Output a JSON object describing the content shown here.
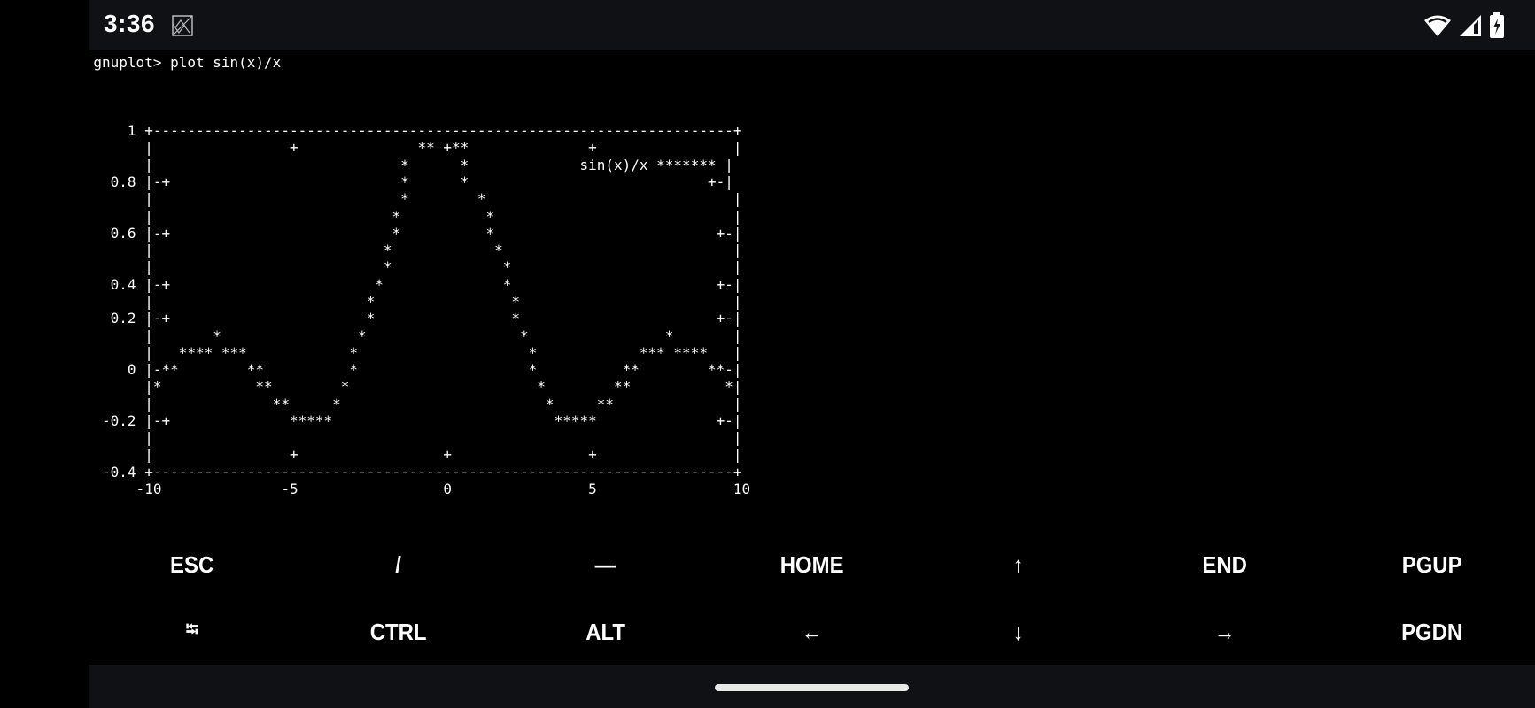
{
  "status_bar": {
    "time": "3:36",
    "notification_icon": "gallery-icon",
    "icons": [
      "wifi-icon",
      "cellular-signal-icon",
      "battery-charging-icon"
    ]
  },
  "terminal": {
    "lines": [
      "gnuplot> plot sin(x)/x",
      "",
      "",
      "",
      "    1 +--------------------------------------------------------------------+",
      "      |                +              ** +**              +                |",
      "      |                             *      *             sin(x)/x ******* |",
      "  0.8 |-+                           *      *                            +-|",
      "      |                             *        *                             |",
      "      |                            *          *                            |",
      "  0.6 |-+                          *          *                          +-|",
      "      |                           *            *                           |",
      "      |                           *             *                          |",
      "  0.4 |-+                        *              *                        +-|",
      "      |                         *                *                         |",
      "  0.2 |-+                       *                *                       +-|",
      "      |       *                *                  *                *       |",
      "      |   **** ***            *                    *            *** ****   |",
      "    0 |-**        **          *                    *          **        **-|",
      "      |*           **        *                      *        **           *|",
      "      |              **     *                        *     **              |",
      " -0.2 |-+              *****                          *****              +-|",
      "      |                                                                    |",
      "      |                +                 +                +                |",
      " -0.4 +--------------------------------------------------------------------+",
      "     -10              -5                 0                5                10"
    ]
  },
  "extra_keys": {
    "row1": [
      "ESC",
      "/",
      "—",
      "HOME",
      "↑",
      "END",
      "PGUP"
    ],
    "row2": [
      "⭾",
      "CTRL",
      "ALT",
      "←",
      "↓",
      "→",
      "PGDN"
    ]
  },
  "colors": {
    "background": "#000000",
    "system_bar": "#101114",
    "text": "#ffffff"
  }
}
